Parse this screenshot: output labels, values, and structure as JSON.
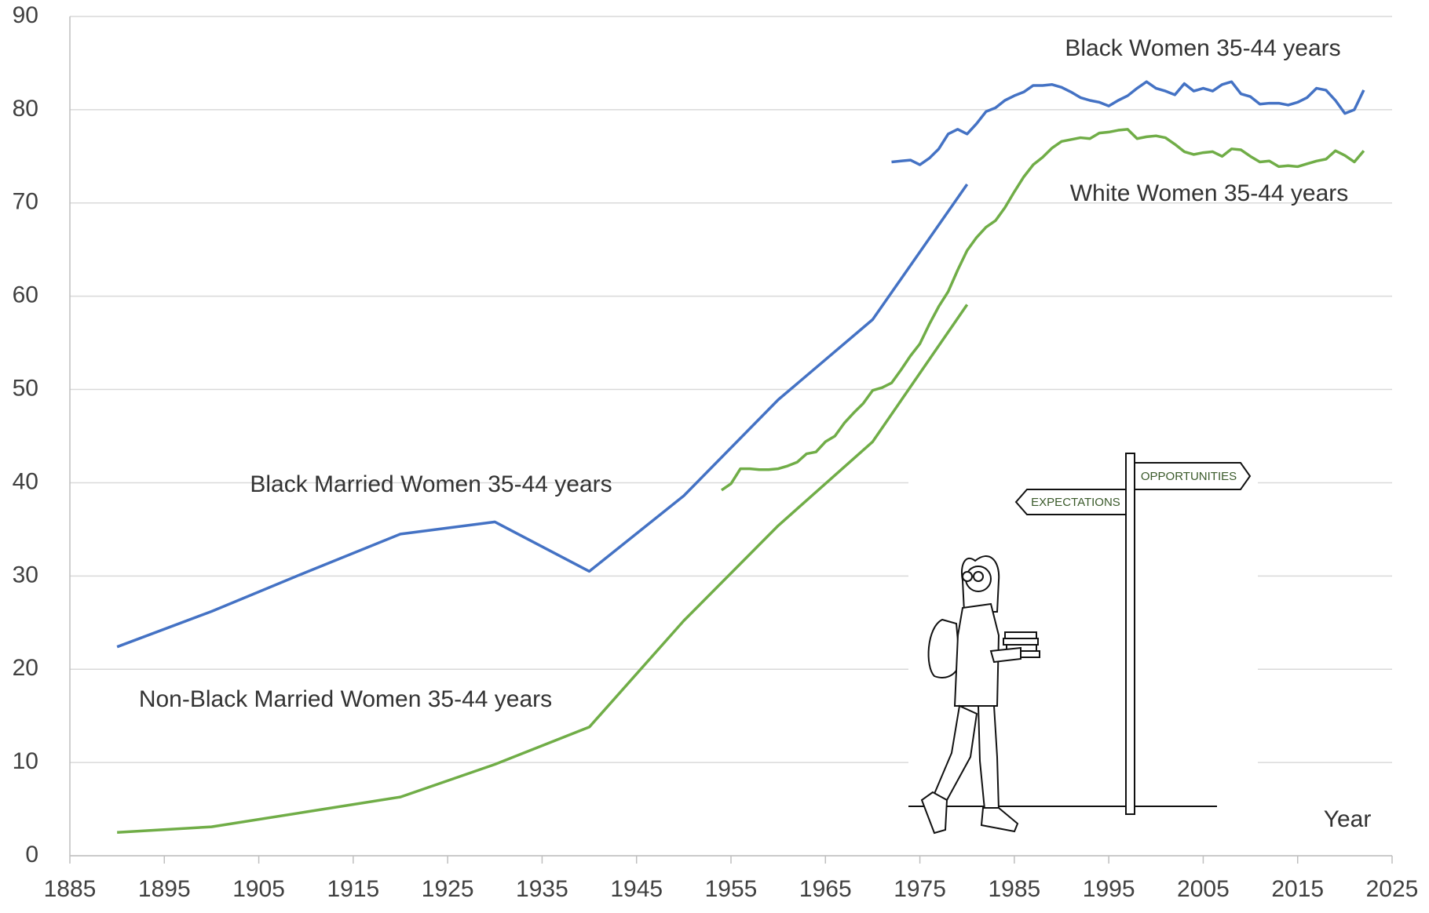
{
  "chart_data": {
    "type": "line",
    "x_label": "Year",
    "xlim": [
      1885,
      2025
    ],
    "xticks": [
      1885,
      1895,
      1905,
      1915,
      1925,
      1935,
      1945,
      1955,
      1965,
      1975,
      1985,
      1995,
      2005,
      2015,
      2025
    ],
    "ylim": [
      0,
      90
    ],
    "yticks": [
      0,
      10,
      20,
      30,
      40,
      50,
      60,
      70,
      80,
      90
    ],
    "grid": true,
    "series": [
      {
        "name": "Black Women 35-44 years",
        "color": "#4472c4",
        "x": [
          1972,
          1973,
          1974,
          1975,
          1976,
          1977,
          1978,
          1979,
          1980,
          1981,
          1982,
          1983,
          1984,
          1985,
          1986,
          1987,
          1988,
          1989,
          1990,
          1991,
          1992,
          1993,
          1994,
          1995,
          1996,
          1997,
          1998,
          1999,
          2000,
          2001,
          2002,
          2003,
          2004,
          2005,
          2006,
          2007,
          2008,
          2009,
          2010,
          2011,
          2012,
          2013,
          2014,
          2015,
          2016,
          2017,
          2018,
          2019,
          2020,
          2021,
          2022
        ],
        "values": [
          74.4,
          74.5,
          74.6,
          74.1,
          74.8,
          75.8,
          77.4,
          77.9,
          77.4,
          78.5,
          79.8,
          80.2,
          81.0,
          81.5,
          81.9,
          82.6,
          82.6,
          82.7,
          82.4,
          81.9,
          81.3,
          81.0,
          80.8,
          80.4,
          81.0,
          81.5,
          82.3,
          83.0,
          82.3,
          82.0,
          81.6,
          82.8,
          82.0,
          82.3,
          82.0,
          82.7,
          83.0,
          81.7,
          81.4,
          80.6,
          80.7,
          80.7,
          80.5,
          80.8,
          81.3,
          82.3,
          82.1,
          81.0,
          79.6,
          80.0,
          82.1
        ]
      },
      {
        "name": "White Women 35-44 years",
        "color": "#70ad47",
        "x": [
          1954,
          1955,
          1956,
          1957,
          1958,
          1959,
          1960,
          1961,
          1962,
          1963,
          1964,
          1965,
          1966,
          1967,
          1968,
          1969,
          1970,
          1971,
          1972,
          1973,
          1974,
          1975,
          1976,
          1977,
          1978,
          1979,
          1980,
          1981,
          1982,
          1983,
          1984,
          1985,
          1986,
          1987,
          1988,
          1989,
          1990,
          1991,
          1992,
          1993,
          1994,
          1995,
          1996,
          1997,
          1998,
          1999,
          2000,
          2001,
          2002,
          2003,
          2004,
          2005,
          2006,
          2007,
          2008,
          2009,
          2010,
          2011,
          2012,
          2013,
          2014,
          2015,
          2016,
          2017,
          2018,
          2019,
          2020,
          2021,
          2022
        ],
        "values": [
          39.2,
          39.9,
          41.5,
          41.5,
          41.4,
          41.4,
          41.5,
          41.8,
          42.2,
          43.1,
          43.3,
          44.4,
          45.0,
          46.4,
          47.5,
          48.5,
          49.9,
          50.2,
          50.7,
          52.1,
          53.6,
          54.9,
          57.0,
          58.9,
          60.5,
          62.8,
          64.9,
          66.3,
          67.4,
          68.1,
          69.5,
          71.2,
          72.8,
          74.1,
          74.9,
          75.9,
          76.6,
          76.8,
          77.0,
          76.9,
          77.5,
          77.6,
          77.8,
          77.9,
          76.9,
          77.1,
          77.2,
          77.0,
          76.3,
          75.5,
          75.2,
          75.4,
          75.5,
          75.0,
          75.8,
          75.7,
          75.0,
          74.4,
          74.5,
          73.9,
          74.0,
          73.9,
          74.2,
          74.5,
          74.7,
          75.6,
          75.1,
          74.4,
          75.6
        ]
      },
      {
        "name": "Black Married Women 35-44 years",
        "color": "#4472c4",
        "x": [
          1890,
          1900,
          1910,
          1920,
          1930,
          1940,
          1950,
          1960,
          1970,
          1980
        ],
        "values": [
          22.4,
          26.2,
          30.4,
          34.5,
          35.8,
          30.5,
          38.6,
          48.9,
          57.5,
          72.0
        ]
      },
      {
        "name": "Non-Black Married Women 35-44 years",
        "color": "#70ad47",
        "x": [
          1890,
          1900,
          1910,
          1920,
          1930,
          1940,
          1950,
          1960,
          1970,
          1980
        ],
        "values": [
          2.5,
          3.1,
          4.7,
          6.3,
          9.8,
          13.8,
          25.2,
          35.4,
          44.4,
          59.1
        ]
      }
    ]
  },
  "illustration": {
    "signs": [
      "OPPORTUNITIES",
      "EXPECTATIONS"
    ]
  }
}
